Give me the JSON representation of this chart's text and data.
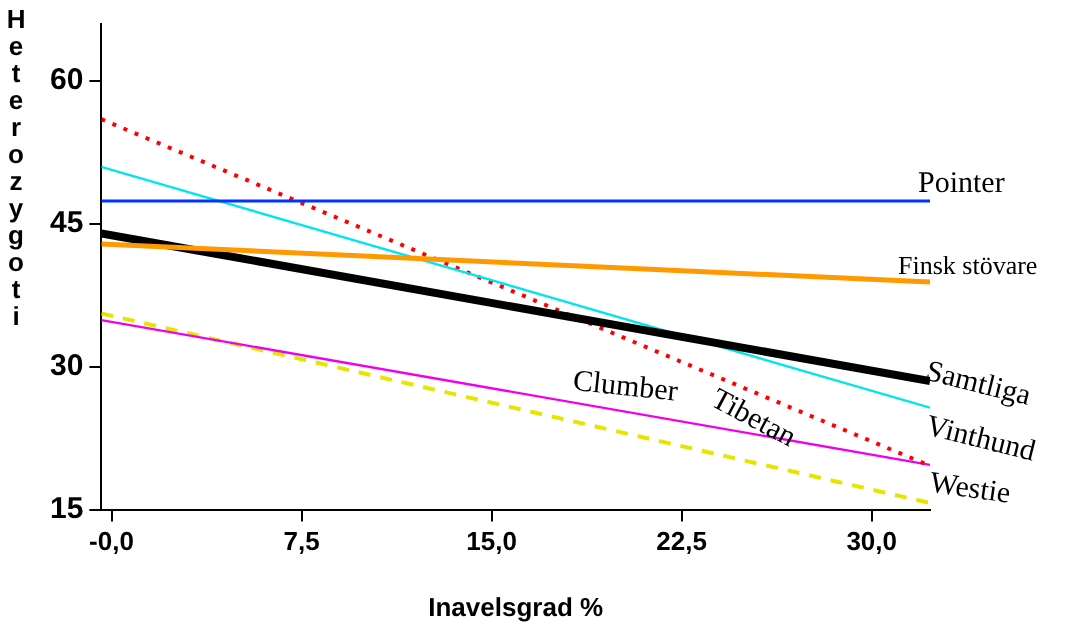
{
  "chart_data": {
    "type": "line",
    "xlabel": "Inavelsgrad %",
    "ylabel": "Heterozygoti",
    "x": [
      -0.4,
      32.3
    ],
    "xlim": [
      -0.4,
      32.3
    ],
    "xticks": [
      {
        "value": 0,
        "label": "-0,0"
      },
      {
        "value": 7.5,
        "label": "7,5"
      },
      {
        "value": 15,
        "label": "15,0"
      },
      {
        "value": 22.5,
        "label": "22,5"
      },
      {
        "value": 30,
        "label": "30,0"
      }
    ],
    "ylim": [
      15,
      66
    ],
    "yticks": [
      15,
      30,
      45,
      60
    ],
    "grid": false,
    "legend": false,
    "marker": "none",
    "series": [
      {
        "name": "Pointer",
        "color": "#0033ff",
        "values": [
          47.4,
          47.4
        ]
      },
      {
        "name": "Finsk stövare",
        "color": "#ff9900",
        "values": [
          42.9,
          38.9
        ]
      },
      {
        "name": "Samtliga",
        "color": "#000000",
        "values": [
          44.0,
          28.5
        ]
      },
      {
        "name": "Vinthund",
        "color": "#00e5ee",
        "values": [
          51.0,
          25.7
        ]
      },
      {
        "name": "Tibetan",
        "color": "#ff0000",
        "values": [
          56.0,
          19.6
        ],
        "line_style": "dotted"
      },
      {
        "name": "Clumber",
        "color": "#ee00ee",
        "values": [
          34.9,
          19.7
        ]
      },
      {
        "name": "Westie",
        "color": "#e5e500",
        "values": [
          35.6,
          15.7
        ],
        "line_style": "dashed"
      }
    ]
  }
}
